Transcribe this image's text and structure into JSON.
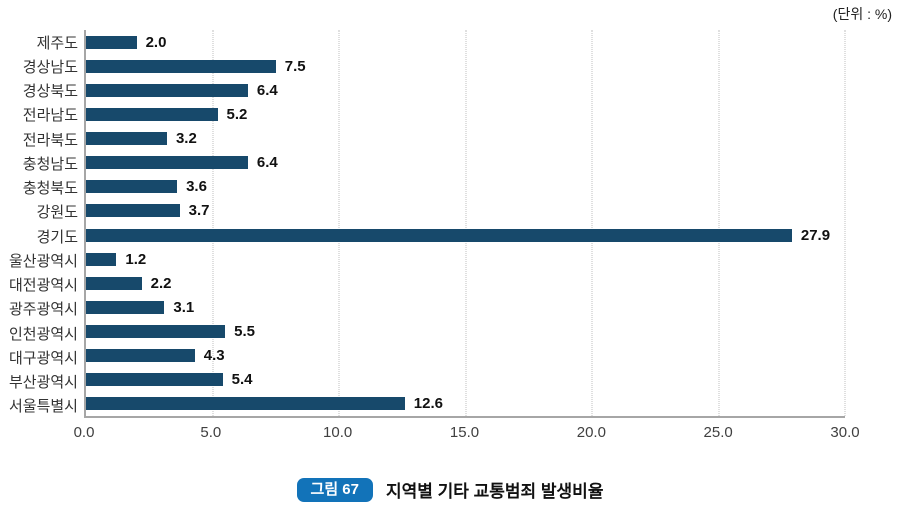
{
  "units_label": "(단위 : %)",
  "caption": {
    "badge": "그림 67",
    "title": "지역별 기타 교통범죄 발생비율"
  },
  "colors": {
    "bar": "#17496b",
    "badge": "#1273b9",
    "axis_line": "#a6a6a6",
    "gridline": "#bfbfbf"
  },
  "chart_data": {
    "type": "bar",
    "orientation": "horizontal",
    "title": "지역별 기타 교통범죄 발생비율",
    "unit": "%",
    "categories": [
      "제주도",
      "경상남도",
      "경상북도",
      "전라남도",
      "전라북도",
      "충청남도",
      "충청북도",
      "강원도",
      "경기도",
      "울산광역시",
      "대전광역시",
      "광주광역시",
      "인천광역시",
      "대구광역시",
      "부산광역시",
      "서울특별시"
    ],
    "values": [
      2.0,
      7.5,
      6.4,
      5.2,
      3.2,
      6.4,
      3.6,
      3.7,
      27.9,
      1.2,
      2.2,
      3.1,
      5.5,
      4.3,
      5.4,
      12.6
    ],
    "xlim": [
      0,
      30
    ],
    "xticks": [
      "0.0",
      "5.0",
      "10.0",
      "15.0",
      "20.0",
      "25.0",
      "30.0"
    ],
    "grid": "vertical-dotted",
    "legend": "none",
    "value_labels": "outside-end-bold"
  }
}
